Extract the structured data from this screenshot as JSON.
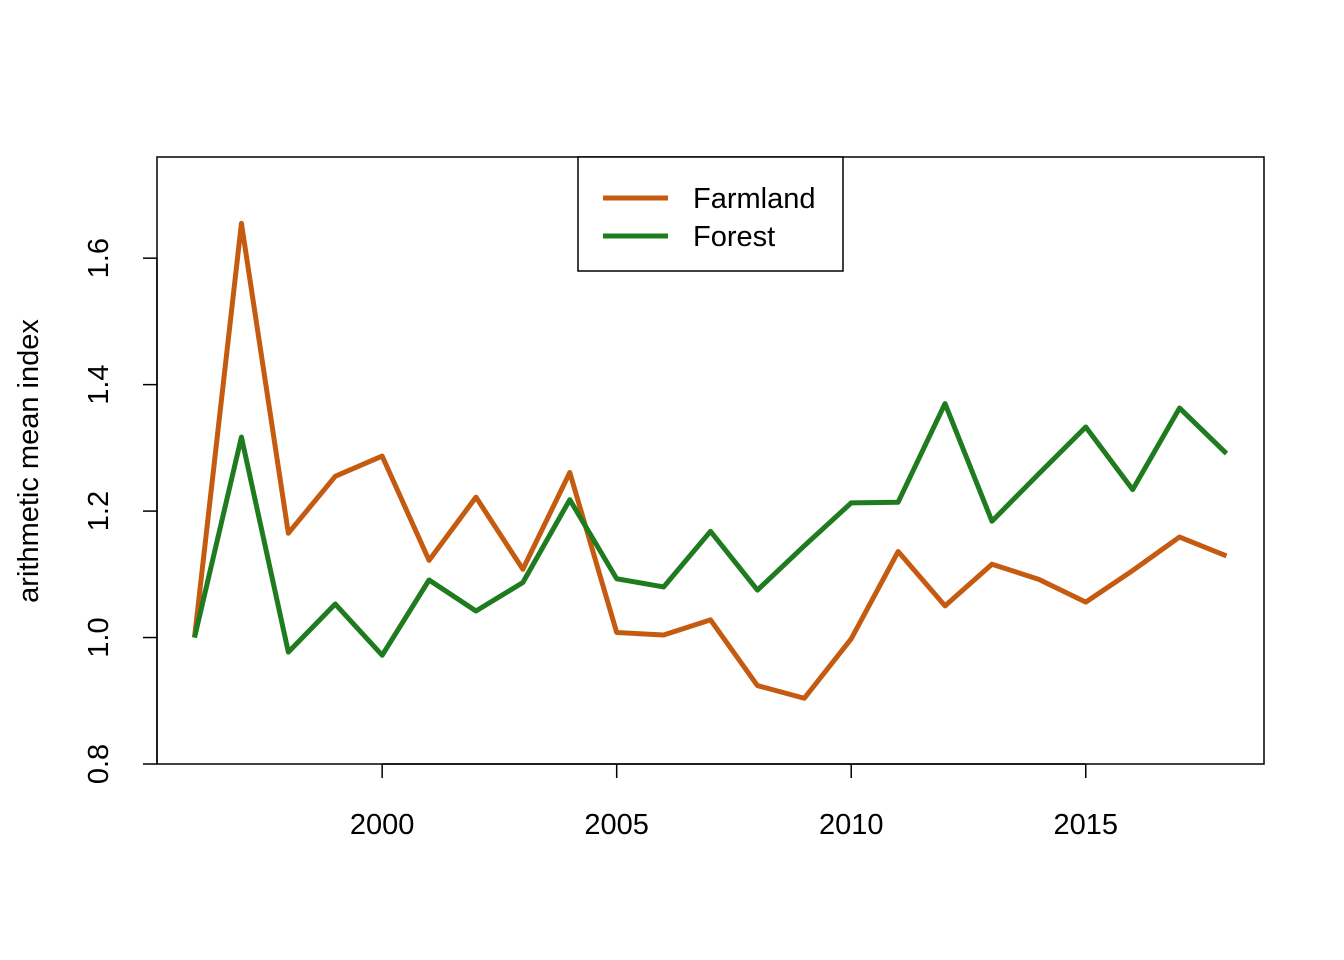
{
  "chart_data": {
    "type": "line",
    "title": "",
    "xlabel": "",
    "ylabel": "arithmetic mean index",
    "xlim": [
      1995.2,
      2018.8
    ],
    "ylim": [
      0.8,
      1.76
    ],
    "x_ticks": [
      2000,
      2005,
      2010,
      2015
    ],
    "y_ticks": [
      0.8,
      1.0,
      1.2,
      1.4,
      1.6
    ],
    "x_tick_labels": [
      "2000",
      "2005",
      "2010",
      "2015"
    ],
    "y_tick_labels": [
      "0.8",
      "1.0",
      "1.2",
      "1.4",
      "1.6"
    ],
    "grid": false,
    "legend_position": "top-center",
    "x": [
      1996,
      1997,
      1998,
      1999,
      2000,
      2001,
      2002,
      2003,
      2004,
      2005,
      2006,
      2007,
      2008,
      2009,
      2010,
      2011,
      2012,
      2013,
      2014,
      2015,
      2016,
      2017,
      2018
    ],
    "series": [
      {
        "name": "Farmland",
        "color": "#c55a11",
        "values": [
          1.0,
          1.655,
          1.165,
          1.255,
          1.287,
          1.122,
          1.222,
          1.108,
          1.261,
          1.008,
          1.004,
          1.028,
          0.924,
          0.904,
          0.998,
          1.136,
          1.05,
          1.116,
          1.092,
          1.056,
          1.106,
          1.159,
          1.129
        ]
      },
      {
        "name": "Forest",
        "color": "#1e7b1e",
        "values": [
          1.0,
          1.317,
          0.977,
          1.053,
          0.972,
          1.091,
          1.042,
          1.087,
          1.218,
          1.093,
          1.08,
          1.168,
          1.075,
          1.145,
          1.213,
          1.214,
          1.37,
          1.184,
          1.259,
          1.333,
          1.234,
          1.363,
          1.291
        ]
      }
    ]
  }
}
